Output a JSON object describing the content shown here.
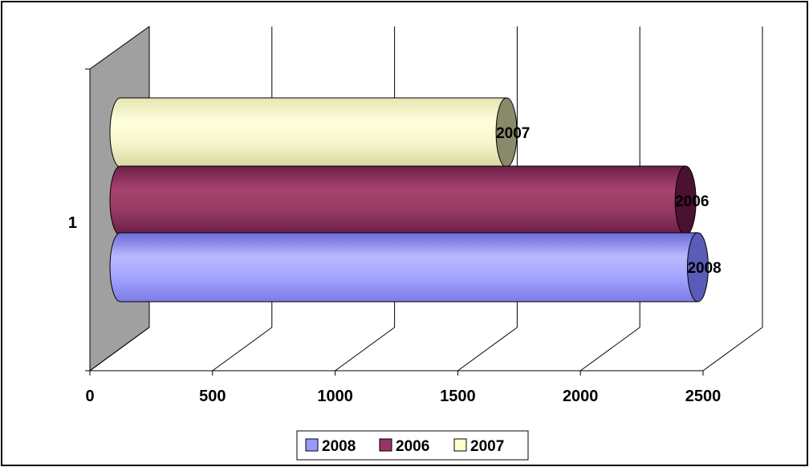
{
  "chart_data": {
    "type": "bar",
    "orientation": "horizontal",
    "style": "3d-cylinder",
    "categories": [
      "1"
    ],
    "xlim": [
      0,
      2500
    ],
    "x_ticks": [
      "0",
      "500",
      "1000",
      "1500",
      "2000",
      "2500"
    ],
    "grid": true,
    "legend_position": "bottom",
    "series": [
      {
        "name": "2008",
        "values": [
          2400
        ],
        "data_label": "2008",
        "color": "#9999ff"
      },
      {
        "name": "2006",
        "values": [
          2350
        ],
        "data_label": "2006",
        "color": "#993366"
      },
      {
        "name": "2007",
        "values": [
          1620
        ],
        "data_label": "2007",
        "color": "#ffffcc"
      }
    ],
    "legend": [
      "2008",
      "2006",
      "2007"
    ]
  }
}
